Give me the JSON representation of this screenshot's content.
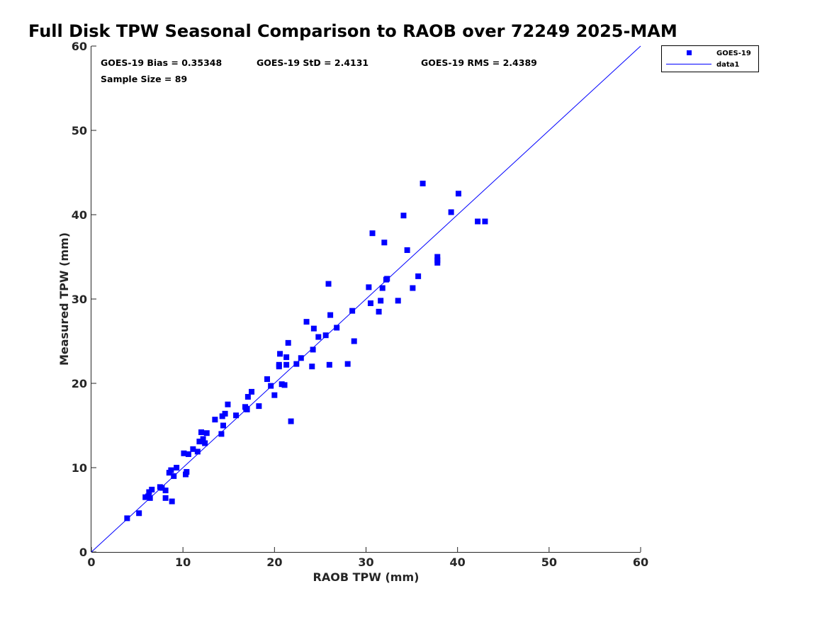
{
  "chart_data": {
    "type": "scatter",
    "title": "Full Disk TPW Seasonal Comparison to RAOB over 72249 2025-MAM",
    "xlabel": "RAOB TPW (mm)",
    "ylabel": "Measured TPW (mm)",
    "xlim": [
      0,
      60
    ],
    "ylim": [
      0,
      60
    ],
    "xticks": [
      "0",
      "10",
      "20",
      "30",
      "40",
      "50",
      "60"
    ],
    "yticks": [
      "0",
      "10",
      "20",
      "30",
      "40",
      "50",
      "60"
    ],
    "grid": false,
    "legend_position": "top-right-outside",
    "annotations": {
      "bias": "GOES-19 Bias = 0.35348",
      "std": "GOES-19 StD = 2.4131",
      "rms": "GOES-19 RMS = 2.4389",
      "sample": "Sample Size = 89"
    },
    "series": [
      {
        "name": "GOES-19",
        "kind": "scatter",
        "marker": "square",
        "color": "#0000ff",
        "points": [
          [
            3.9,
            4.0
          ],
          [
            5.2,
            4.6
          ],
          [
            5.9,
            6.5
          ],
          [
            6.2,
            6.6
          ],
          [
            6.3,
            7.1
          ],
          [
            6.4,
            6.4
          ],
          [
            6.6,
            7.4
          ],
          [
            7.5,
            7.7
          ],
          [
            7.7,
            7.6
          ],
          [
            8.1,
            6.4
          ],
          [
            8.1,
            7.3
          ],
          [
            8.5,
            9.4
          ],
          [
            8.7,
            9.7
          ],
          [
            8.8,
            6.0
          ],
          [
            9.0,
            9.0
          ],
          [
            9.3,
            10.0
          ],
          [
            10.1,
            11.7
          ],
          [
            10.3,
            9.2
          ],
          [
            10.4,
            9.5
          ],
          [
            10.6,
            11.6
          ],
          [
            11.1,
            12.2
          ],
          [
            11.6,
            11.9
          ],
          [
            11.8,
            13.1
          ],
          [
            12.0,
            14.2
          ],
          [
            12.2,
            13.4
          ],
          [
            12.4,
            12.9
          ],
          [
            12.6,
            14.1
          ],
          [
            13.5,
            15.7
          ],
          [
            14.2,
            14.0
          ],
          [
            14.3,
            16.1
          ],
          [
            14.4,
            15.0
          ],
          [
            14.6,
            16.4
          ],
          [
            14.9,
            17.5
          ],
          [
            15.8,
            16.2
          ],
          [
            16.8,
            17.2
          ],
          [
            17.0,
            16.9
          ],
          [
            17.1,
            18.4
          ],
          [
            17.5,
            19.0
          ],
          [
            18.3,
            17.3
          ],
          [
            19.2,
            20.5
          ],
          [
            19.6,
            19.7
          ],
          [
            20.0,
            18.6
          ],
          [
            20.5,
            22.0
          ],
          [
            20.5,
            22.2
          ],
          [
            20.6,
            23.5
          ],
          [
            20.8,
            19.9
          ],
          [
            21.1,
            19.8
          ],
          [
            21.3,
            23.1
          ],
          [
            21.3,
            22.2
          ],
          [
            21.5,
            24.8
          ],
          [
            21.8,
            15.5
          ],
          [
            22.4,
            22.3
          ],
          [
            22.9,
            23.0
          ],
          [
            23.5,
            27.3
          ],
          [
            24.1,
            22.0
          ],
          [
            24.2,
            24.0
          ],
          [
            24.3,
            26.5
          ],
          [
            24.8,
            25.5
          ],
          [
            25.6,
            25.7
          ],
          [
            25.9,
            31.8
          ],
          [
            26.0,
            22.2
          ],
          [
            26.1,
            28.1
          ],
          [
            26.8,
            26.6
          ],
          [
            28.0,
            22.3
          ],
          [
            28.5,
            28.6
          ],
          [
            28.7,
            25.0
          ],
          [
            30.3,
            31.4
          ],
          [
            30.5,
            29.5
          ],
          [
            30.7,
            37.8
          ],
          [
            31.4,
            28.5
          ],
          [
            31.6,
            29.8
          ],
          [
            31.8,
            31.3
          ],
          [
            32.0,
            36.7
          ],
          [
            32.2,
            32.3
          ],
          [
            32.3,
            32.4
          ],
          [
            33.5,
            29.8
          ],
          [
            34.1,
            39.9
          ],
          [
            34.5,
            35.8
          ],
          [
            35.1,
            31.3
          ],
          [
            35.7,
            32.7
          ],
          [
            36.2,
            43.7
          ],
          [
            37.8,
            35.0
          ],
          [
            37.8,
            34.6
          ],
          [
            37.8,
            34.3
          ],
          [
            39.3,
            40.3
          ],
          [
            40.1,
            42.5
          ],
          [
            42.2,
            39.2
          ],
          [
            43.0,
            39.2
          ],
          [
            16.9,
            17.0
          ]
        ]
      },
      {
        "name": "data1",
        "kind": "line",
        "color": "#0000ff",
        "points": [
          [
            0,
            0
          ],
          [
            60,
            60
          ]
        ]
      }
    ]
  }
}
